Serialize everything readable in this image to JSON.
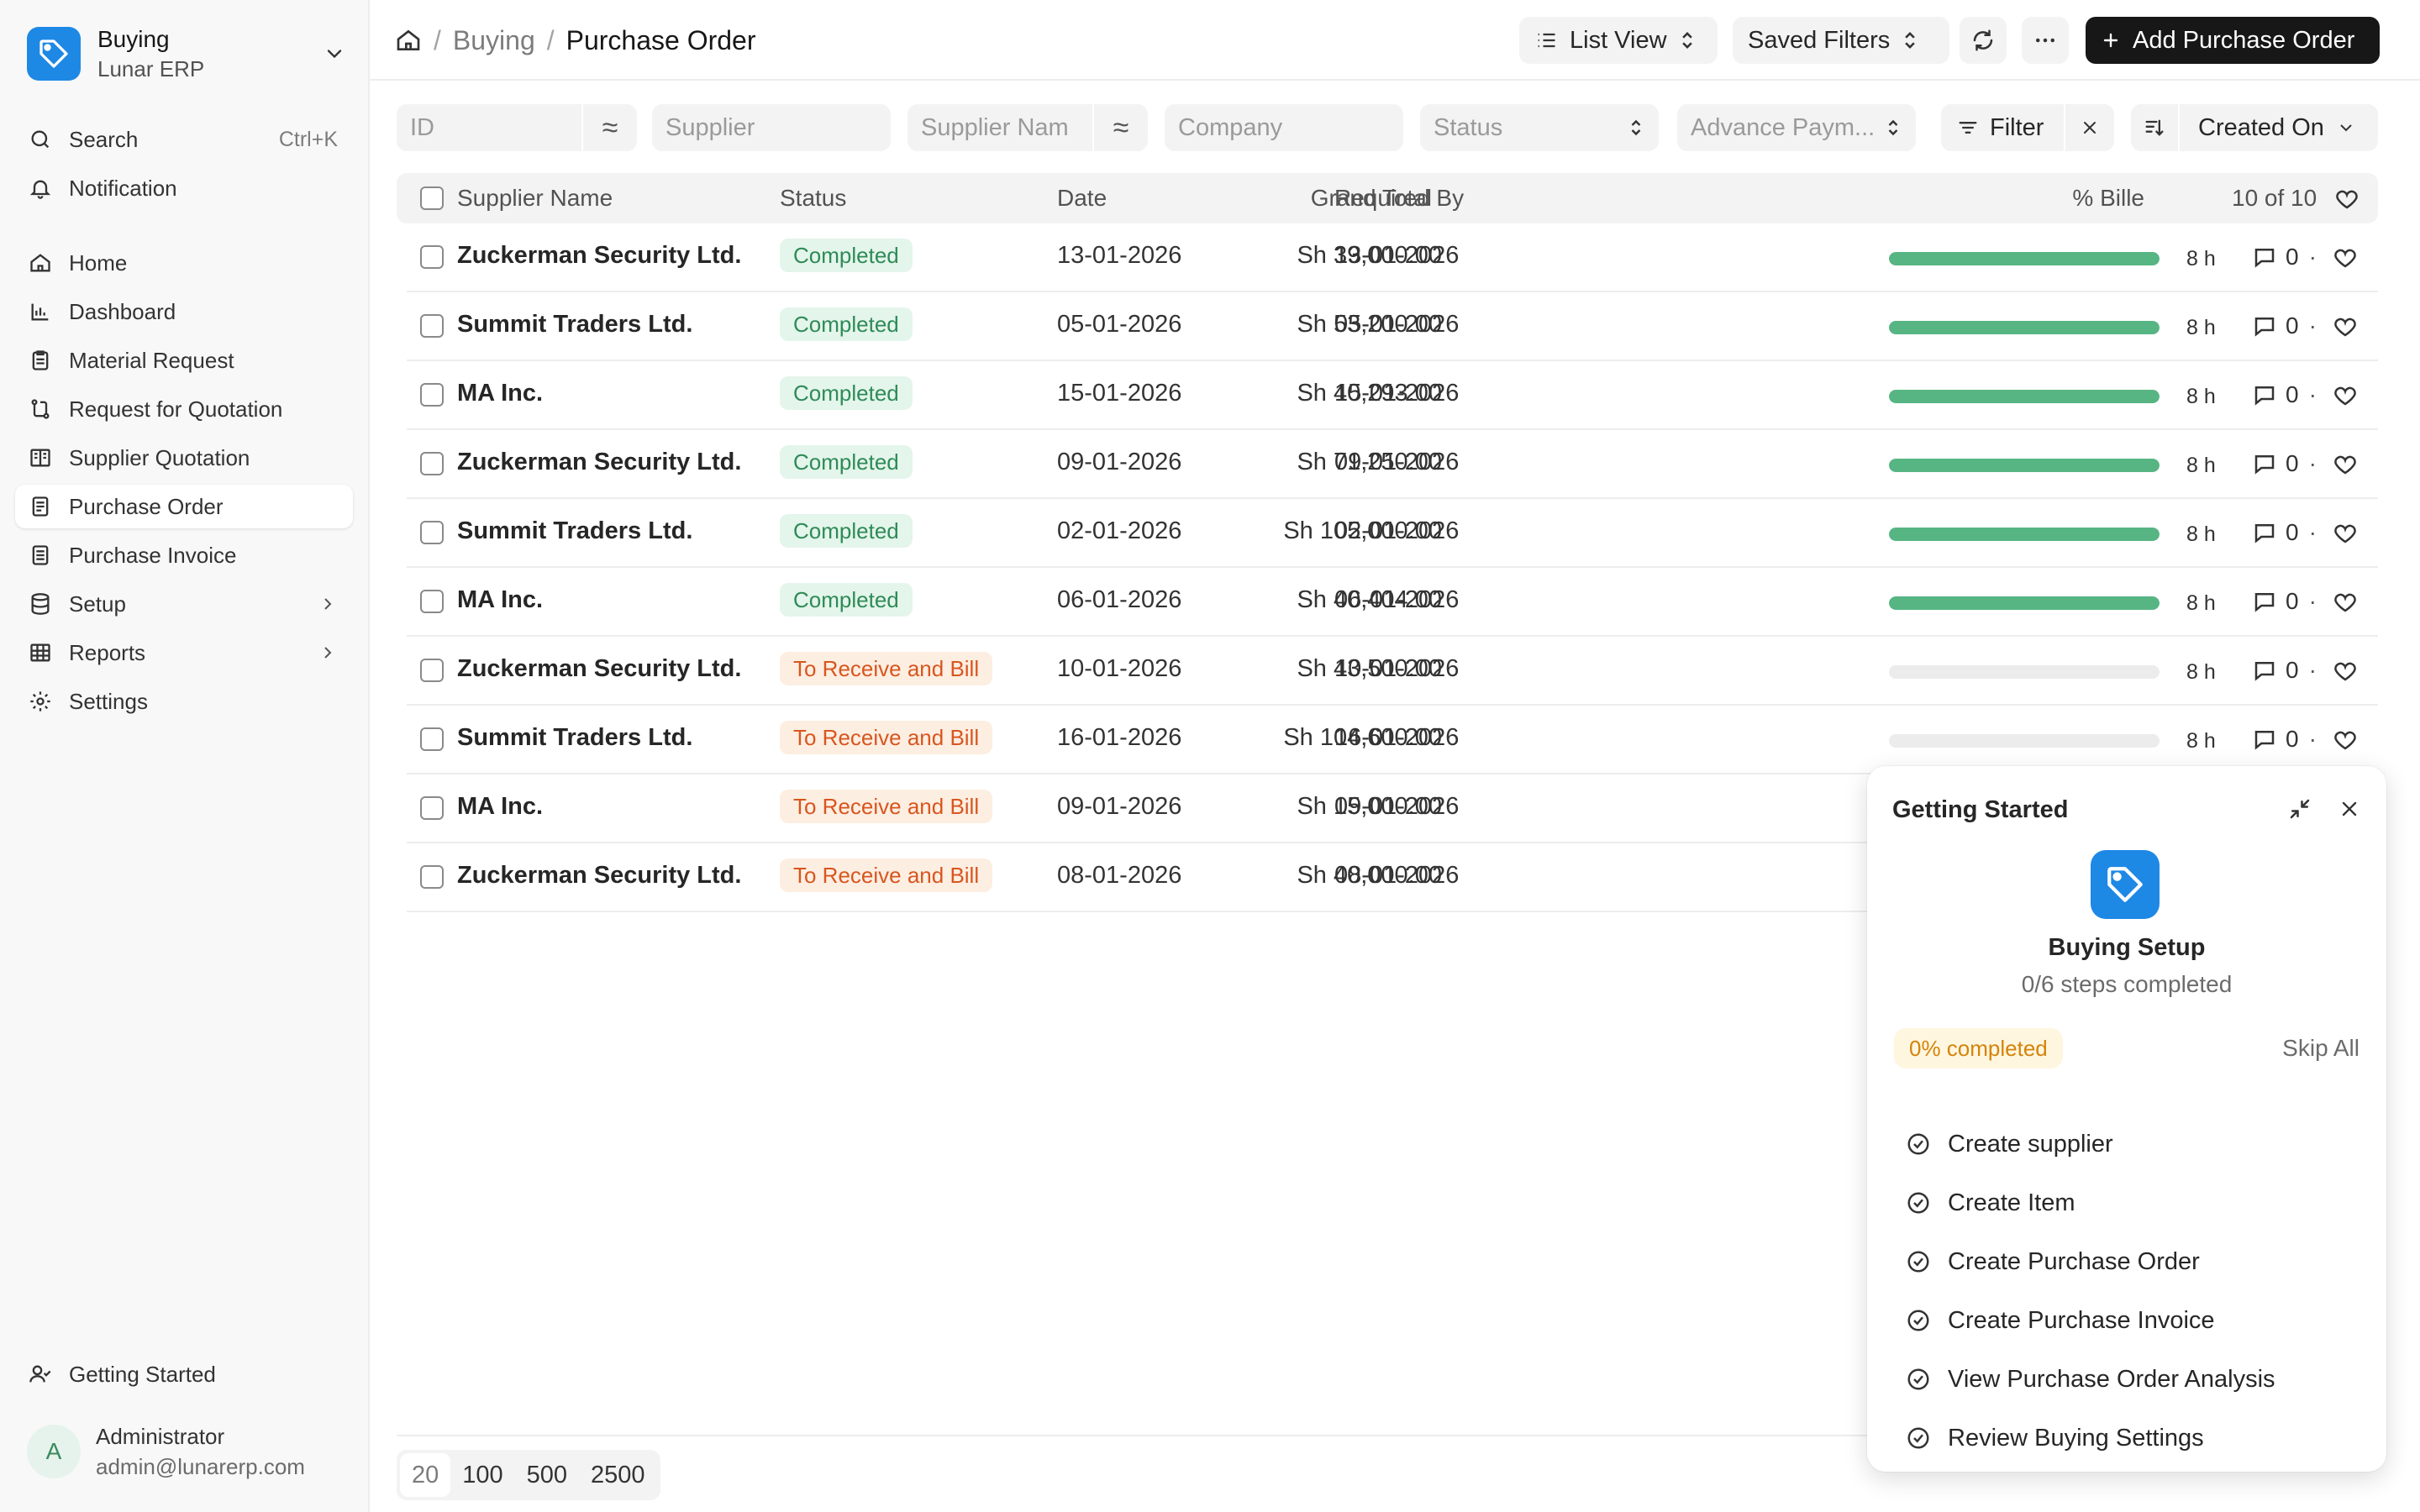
{
  "sidebar": {
    "brand_title": "Buying",
    "brand_subtitle": "Lunar ERP",
    "search_label": "Search",
    "search_shortcut": "Ctrl+K",
    "notification_label": "Notification",
    "items": [
      {
        "label": "Home",
        "icon": "home-icon"
      },
      {
        "label": "Dashboard",
        "icon": "chart-icon"
      },
      {
        "label": "Material Request",
        "icon": "clipboard-icon"
      },
      {
        "label": "Request for Quotation",
        "icon": "route-icon"
      },
      {
        "label": "Supplier Quotation",
        "icon": "book-icon"
      },
      {
        "label": "Purchase Order",
        "icon": "document-icon"
      },
      {
        "label": "Purchase Invoice",
        "icon": "invoice-icon"
      },
      {
        "label": "Setup",
        "icon": "database-icon"
      },
      {
        "label": "Reports",
        "icon": "table-icon"
      },
      {
        "label": "Settings",
        "icon": "gear-icon"
      }
    ],
    "getting_started_label": "Getting Started",
    "user": {
      "initial": "A",
      "name": "Administrator",
      "email": "admin@lunarerp.com"
    }
  },
  "header": {
    "breadcrumb": [
      "Buying",
      "Purchase Order"
    ],
    "list_view_label": "List View",
    "saved_filters_label": "Saved Filters",
    "add_button_label": "Add Purchase Order"
  },
  "filters": {
    "id_placeholder": "ID",
    "supplier_placeholder": "Supplier",
    "supplier_name_placeholder": "Supplier Nam",
    "company_placeholder": "Company",
    "status_placeholder": "Status",
    "advance_payment_placeholder": "Advance Paym...",
    "filter_label": "Filter",
    "sort_label": "Created On"
  },
  "table": {
    "columns": {
      "supplier_name": "Supplier Name",
      "status": "Status",
      "date": "Date",
      "required_by": "Required By",
      "grand_total": "Grand Total",
      "billed": "% Bille",
      "count": "10 of 10"
    },
    "rows": [
      {
        "supplier": "Zuckerman Security Ltd.",
        "status": "Completed",
        "status_color": "green",
        "date": "13-01-2026",
        "required_by": "13-01-2026",
        "total": "Sh 39,000.00",
        "billed": 100,
        "age": "8 h",
        "comments": "0"
      },
      {
        "supplier": "Summit Traders Ltd.",
        "status": "Completed",
        "status_color": "green",
        "date": "05-01-2026",
        "required_by": "05-01-2026",
        "total": "Sh 53,200.00",
        "billed": 100,
        "age": "8 h",
        "comments": "0"
      },
      {
        "supplier": "MA Inc.",
        "status": "Completed",
        "status_color": "green",
        "date": "15-01-2026",
        "required_by": "15-01-2026",
        "total": "Sh 40,293.00",
        "billed": 100,
        "age": "8 h",
        "comments": "0"
      },
      {
        "supplier": "Zuckerman Security Ltd.",
        "status": "Completed",
        "status_color": "green",
        "date": "09-01-2026",
        "required_by": "09-01-2026",
        "total": "Sh 71,250.00",
        "billed": 100,
        "age": "8 h",
        "comments": "0"
      },
      {
        "supplier": "Summit Traders Ltd.",
        "status": "Completed",
        "status_color": "green",
        "date": "02-01-2026",
        "required_by": "02-01-2026",
        "total": "Sh 105,000.00",
        "billed": 100,
        "age": "8 h",
        "comments": "0"
      },
      {
        "supplier": "MA Inc.",
        "status": "Completed",
        "status_color": "green",
        "date": "06-01-2026",
        "required_by": "06-01-2026",
        "total": "Sh 40,404.00",
        "billed": 100,
        "age": "8 h",
        "comments": "0"
      },
      {
        "supplier": "Zuckerman Security Ltd.",
        "status": "To Receive and Bill",
        "status_color": "orange",
        "date": "10-01-2026",
        "required_by": "10-01-2026",
        "total": "Sh 43,500.00",
        "billed": 0,
        "age": "8 h",
        "comments": "0"
      },
      {
        "supplier": "Summit Traders Ltd.",
        "status": "To Receive and Bill",
        "status_color": "orange",
        "date": "16-01-2026",
        "required_by": "16-01-2026",
        "total": "Sh 104,600.00",
        "billed": 0,
        "age": "8 h",
        "comments": "0"
      },
      {
        "supplier": "MA Inc.",
        "status": "To Receive and Bill",
        "status_color": "orange",
        "date": "09-01-2026",
        "required_by": "09-01-2026",
        "total": "Sh 15,000.00",
        "billed": null,
        "age": "",
        "comments": ""
      },
      {
        "supplier": "Zuckerman Security Ltd.",
        "status": "To Receive and Bill",
        "status_color": "orange",
        "date": "08-01-2026",
        "required_by": "08-01-2026",
        "total": "Sh 40,000.00",
        "billed": null,
        "age": "",
        "comments": ""
      }
    ]
  },
  "pagination": {
    "options": [
      "20",
      "100",
      "500",
      "2500"
    ],
    "selected": "20"
  },
  "getting_started": {
    "title": "Getting Started",
    "heading": "Buying Setup",
    "subheading": "0/6 steps completed",
    "progress_label": "0% completed",
    "progress": 0,
    "skip_label": "Skip All",
    "steps": [
      "Create supplier",
      "Create Item",
      "Create Purchase Order",
      "Create Purchase Invoice",
      "View Purchase Order Analysis",
      "Review Buying Settings"
    ]
  },
  "colors": {
    "accent": "#1e88e5",
    "success": "#56b583",
    "warning": "#d8561e",
    "primary_button": "#171717"
  }
}
